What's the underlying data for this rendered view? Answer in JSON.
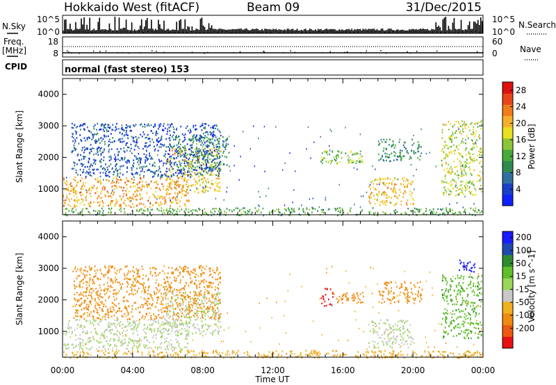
{
  "header": {
    "title": "Hokkaido West (fitACF)",
    "beam": "Beam 09",
    "date": "31/Dec/2015"
  },
  "summary_panels": {
    "nsky_label": "N.Sky",
    "nsky_ticks": [
      "10^5",
      "10^0"
    ],
    "nsearch_label": "N.Search",
    "nsearch_ticks": [
      "10^5",
      "10^0"
    ],
    "freq_label_1": "Freq.",
    "freq_label_2": "[MHz]",
    "freq_ticks": [
      "18",
      "8"
    ],
    "nave_label": "Nave",
    "nave_ticks": [
      "60",
      "0"
    ],
    "cpid_label": "CPID",
    "cpid_value": "normal (fast stereo) 153"
  },
  "chart_data": [
    {
      "type": "heatmap",
      "name": "power",
      "ylabel": "Slant Range [km]",
      "xlabel": "Time UT",
      "xlim_hours": [
        0,
        24
      ],
      "ylim_km": [
        180,
        4500
      ],
      "yticks": [
        1000,
        2000,
        3000,
        4000
      ],
      "xticks": [
        "00:00",
        "04:00",
        "08:00",
        "12:00",
        "16:00",
        "20:00",
        "00:00"
      ],
      "colorbar": {
        "label": "Power [dB]",
        "ticks": [
          4,
          8,
          12,
          16,
          20,
          24,
          28
        ],
        "range": [
          0,
          30
        ],
        "colors": [
          "#1020ff",
          "#1840c8",
          "#3070a0",
          "#2f8a50",
          "#46aa3a",
          "#8cc53a",
          "#e8e020",
          "#f5b02a",
          "#f07c1a",
          "#e8461a",
          "#e01010"
        ]
      },
      "echo_regions": [
        {
          "t0": 0.0,
          "t1": 7.2,
          "r0": 450,
          "r1": 1400,
          "level": 0.72
        },
        {
          "t0": 5.8,
          "t1": 9.0,
          "r0": 900,
          "r1": 2300,
          "level": 0.65
        },
        {
          "t0": 6.5,
          "t1": 9.5,
          "r0": 1600,
          "r1": 2700,
          "level": 0.35
        },
        {
          "t0": 0.5,
          "t1": 9.0,
          "r0": 1400,
          "r1": 3100,
          "level": 0.15
        },
        {
          "t0": 14.7,
          "t1": 17.2,
          "r0": 1800,
          "r1": 2250,
          "level": 0.45
        },
        {
          "t0": 17.4,
          "t1": 20.0,
          "r0": 500,
          "r1": 1400,
          "level": 0.68
        },
        {
          "t0": 18.0,
          "t1": 20.5,
          "r0": 1900,
          "r1": 2600,
          "level": 0.3
        },
        {
          "t0": 21.6,
          "t1": 23.9,
          "r0": 800,
          "r1": 3200,
          "level": 0.55
        },
        {
          "t0": 0.0,
          "t1": 24.0,
          "r0": 180,
          "r1": 420,
          "level": 0.4
        }
      ]
    },
    {
      "type": "heatmap",
      "name": "velocity",
      "ylabel": "Slant Range [km]",
      "xlabel": "Time UT",
      "xlim_hours": [
        0,
        24
      ],
      "ylim_km": [
        180,
        4500
      ],
      "yticks": [
        1000,
        2000,
        3000,
        4000
      ],
      "xticks": [
        "00:00",
        "04:00",
        "08:00",
        "12:00",
        "16:00",
        "20:00",
        "00:00"
      ],
      "colorbar": {
        "label": "Velocity [m s^-1]",
        "ticks": [
          200,
          100,
          50,
          15,
          -15,
          -50,
          -100,
          -200
        ],
        "colors": [
          "#1a1aff",
          "#1e4ab0",
          "#2e8a2e",
          "#5fbf2a",
          "#9bd65a",
          "#c8c8c8",
          "#f0b020",
          "#f08a10",
          "#ec5a12",
          "#e81010"
        ]
      },
      "echo_regions": [
        {
          "t0": 0.0,
          "t1": 7.2,
          "r0": 450,
          "r1": 1400,
          "velocity": 0
        },
        {
          "t0": 5.8,
          "t1": 9.0,
          "r0": 900,
          "r1": 2300,
          "velocity": 0
        },
        {
          "t0": 0.5,
          "t1": 9.0,
          "r0": 1400,
          "r1": 3100,
          "velocity": -60
        },
        {
          "t0": 14.7,
          "t1": 15.4,
          "r0": 1800,
          "r1": 2400,
          "velocity": -230
        },
        {
          "t0": 15.3,
          "t1": 17.2,
          "r0": 1900,
          "r1": 2250,
          "velocity": -70
        },
        {
          "t0": 17.4,
          "t1": 20.0,
          "r0": 500,
          "r1": 1400,
          "velocity": 0
        },
        {
          "t0": 18.0,
          "t1": 20.5,
          "r0": 1900,
          "r1": 2600,
          "velocity": -60
        },
        {
          "t0": 21.6,
          "t1": 23.9,
          "r0": 800,
          "r1": 2800,
          "velocity": 40
        },
        {
          "t0": 22.6,
          "t1": 23.6,
          "r0": 2900,
          "r1": 3300,
          "velocity": 220
        },
        {
          "t0": 0.0,
          "t1": 24.0,
          "r0": 180,
          "r1": 420,
          "velocity": -40
        }
      ]
    }
  ]
}
